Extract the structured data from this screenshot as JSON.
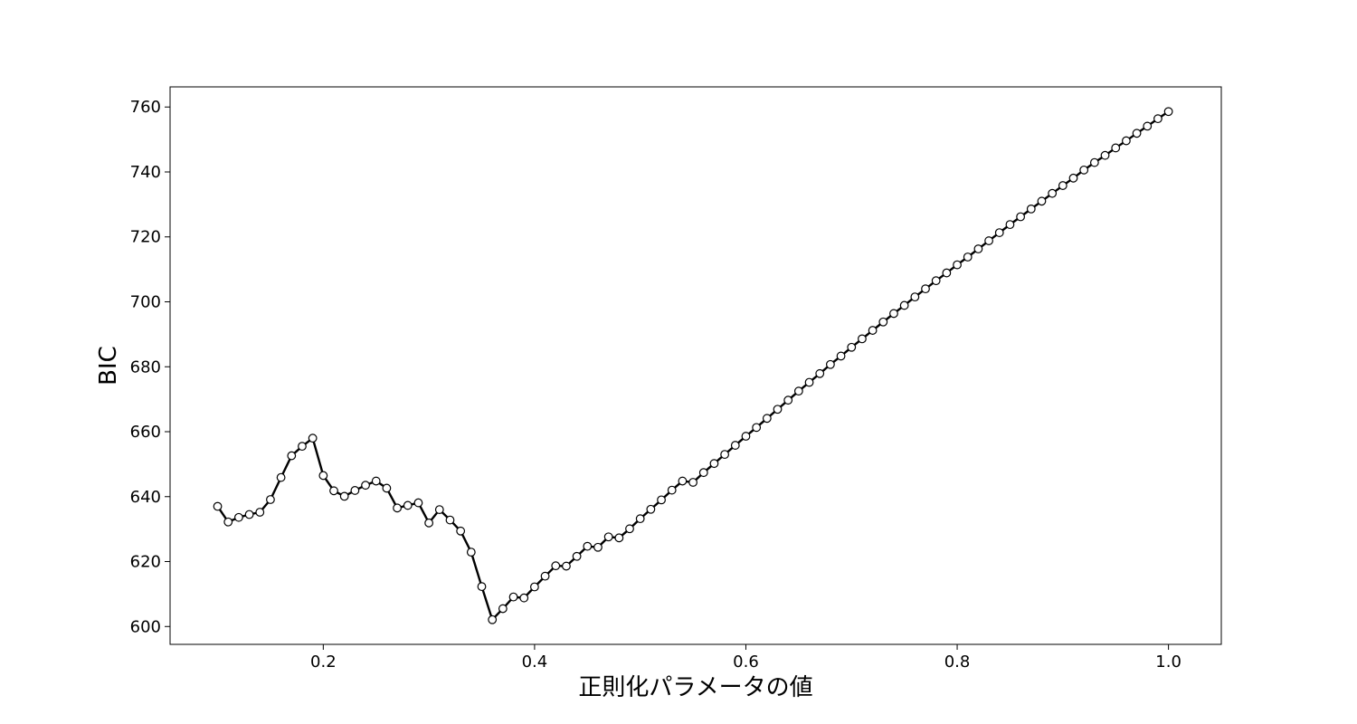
{
  "chart_data": {
    "type": "line",
    "title": "",
    "xlabel": "正則化パラメータの値",
    "ylabel": "BIC",
    "xlim": [
      0.055,
      1.05
    ],
    "ylim": [
      594.5,
      766.2
    ],
    "xticks": [
      0.2,
      0.4,
      0.6,
      0.8,
      1.0
    ],
    "xtick_labels": [
      "0.2",
      "0.4",
      "0.6",
      "0.8",
      "1.0"
    ],
    "yticks": [
      600,
      620,
      640,
      660,
      680,
      700,
      720,
      740,
      760
    ],
    "ytick_labels": [
      "600",
      "620",
      "640",
      "660",
      "680",
      "700",
      "720",
      "740",
      "760"
    ],
    "grid": false,
    "legend": "none",
    "line_color": "#000000",
    "marker_face": "#ffffff",
    "marker_edge": "#000000",
    "x": [
      0.1,
      0.11,
      0.12,
      0.13,
      0.14,
      0.15,
      0.16,
      0.17,
      0.18,
      0.19,
      0.2,
      0.21,
      0.22,
      0.23,
      0.24,
      0.25,
      0.26,
      0.27,
      0.28,
      0.29,
      0.3,
      0.31,
      0.32,
      0.33,
      0.34,
      0.35,
      0.36,
      0.37,
      0.38,
      0.39,
      0.4,
      0.41,
      0.42,
      0.43,
      0.44,
      0.45,
      0.46,
      0.47,
      0.48,
      0.49,
      0.5,
      0.51,
      0.52,
      0.53,
      0.54,
      0.55,
      0.56,
      0.57,
      0.58,
      0.59,
      0.6,
      0.61,
      0.62,
      0.63,
      0.64,
      0.65,
      0.66,
      0.67,
      0.68,
      0.69,
      0.7,
      0.71,
      0.72,
      0.73,
      0.74,
      0.75,
      0.76,
      0.77,
      0.78,
      0.79,
      0.8,
      0.81,
      0.82,
      0.83,
      0.84,
      0.85,
      0.86,
      0.87,
      0.88,
      0.89,
      0.9,
      0.91,
      0.92,
      0.93,
      0.94,
      0.95,
      0.96,
      0.97,
      0.98,
      0.99,
      1.0
    ],
    "series": [
      {
        "values": [
          637.0,
          632.2,
          633.6,
          634.5,
          635.2,
          639.1,
          645.9,
          652.6,
          655.5,
          658.0,
          646.5,
          641.8,
          640.1,
          641.9,
          643.5,
          644.8,
          642.6,
          636.5,
          637.3,
          638.1,
          631.9,
          636.0,
          632.8,
          629.4,
          622.9,
          612.3,
          602.1,
          605.5,
          609.1,
          608.8,
          612.2,
          615.5,
          618.7,
          618.6,
          621.6,
          624.7,
          624.4,
          627.6,
          627.3,
          630.1,
          633.2,
          636.1,
          639.0,
          642.0,
          644.8,
          644.4,
          647.4,
          650.2,
          653.0,
          655.8,
          658.6,
          661.3,
          664.1,
          666.9,
          669.7,
          672.5,
          675.2,
          677.9,
          680.7,
          683.3,
          686.0,
          688.6,
          691.2,
          693.8,
          696.4,
          698.9,
          701.5,
          704.0,
          706.5,
          708.9,
          711.4,
          713.8,
          716.3,
          718.8,
          721.3,
          723.8,
          726.2,
          728.6,
          731.0,
          733.4,
          735.8,
          738.1,
          740.6,
          742.9,
          745.1,
          747.4,
          749.6,
          751.9,
          754.1,
          756.4,
          758.6
        ]
      }
    ]
  }
}
